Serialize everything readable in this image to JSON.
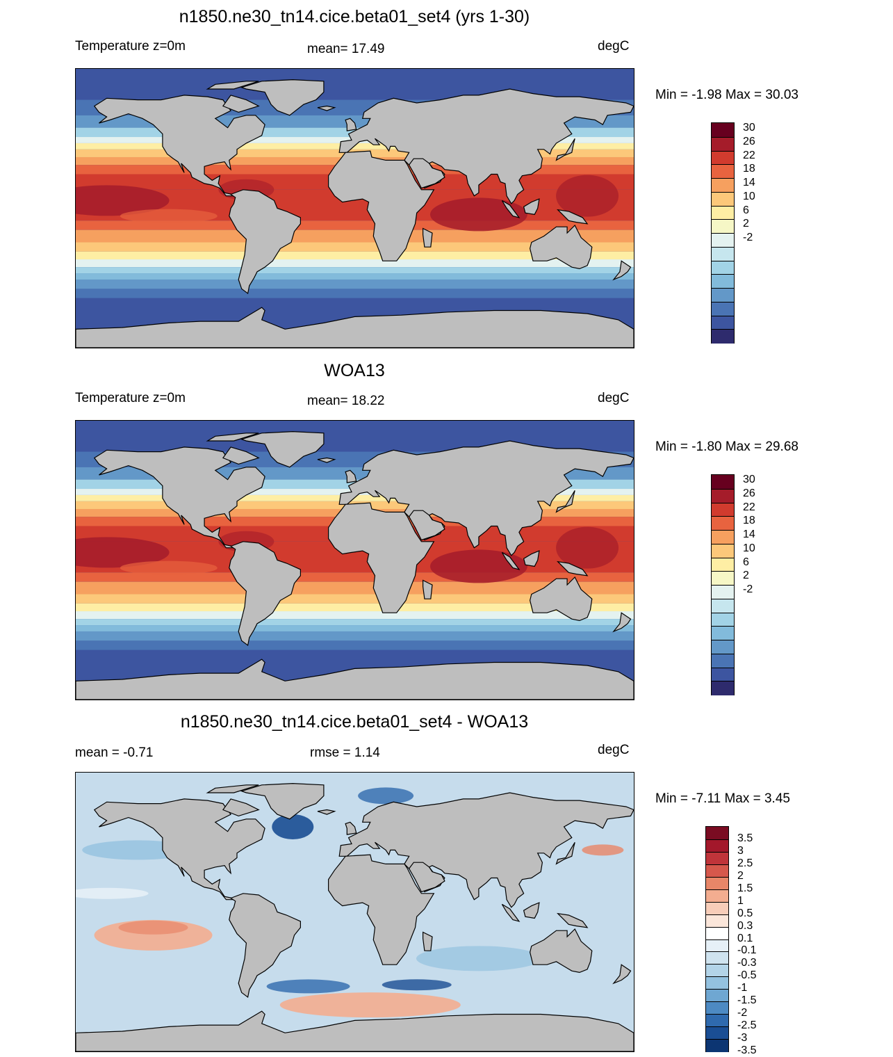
{
  "panels": [
    {
      "title": "n1850.ne30_tn14.cice.beta01_set4 (yrs 1-30)",
      "left": "Temperature z=0m",
      "center": "mean=  17.49",
      "right": "degC",
      "minmax": "Min =  -1.98 Max =  30.03",
      "kind": "abs"
    },
    {
      "title": "WOA13",
      "left": "Temperature z=0m",
      "center": "mean=  18.22",
      "right": "degC",
      "minmax": "Min =  -1.80 Max =  29.68",
      "kind": "abs"
    },
    {
      "title": "n1850.ne30_tn14.cice.beta01_set4 - WOA13",
      "left": "mean =  -0.71",
      "center": "rmse =   1.14",
      "right": "degC",
      "minmax": "Min =  -7.11 Max =   3.45",
      "kind": "diff"
    }
  ],
  "colorbar_abs": {
    "labels": [
      "30",
      "26",
      "22",
      "18",
      "14",
      "10",
      "6",
      "2",
      "-2"
    ],
    "colors": [
      "#67001f",
      "#a51c2a",
      "#d13b2e",
      "#e8633f",
      "#f6a05f",
      "#fcc87a",
      "#feeea4",
      "#f6f7c6",
      "#e4f2f0",
      "#c6e6ee",
      "#a2d3e6",
      "#82bbdb",
      "#6398c8",
      "#4a74b4",
      "#3d55a0",
      "#2e2b6d"
    ]
  },
  "colorbar_diff": {
    "labels": [
      "3.5",
      "3",
      "2.5",
      "2",
      "1.5",
      "1",
      "0.5",
      "0.3",
      "0.1",
      "-0.1",
      "-0.3",
      "-0.5",
      "-1",
      "-1.5",
      "-2",
      "-2.5",
      "-3",
      "-3.5"
    ],
    "colors": [
      "#7a0c22",
      "#a3182b",
      "#c0343a",
      "#d6584c",
      "#e88668",
      "#f3ad90",
      "#f8cdb9",
      "#fbe6da",
      "#ffffff",
      "#e6f0f7",
      "#cfe3ef",
      "#b3d4e8",
      "#94c2e0",
      "#6fa7d2",
      "#4d8ac3",
      "#2f6aae",
      "#1a4e94",
      "#0c3572"
    ]
  }
}
